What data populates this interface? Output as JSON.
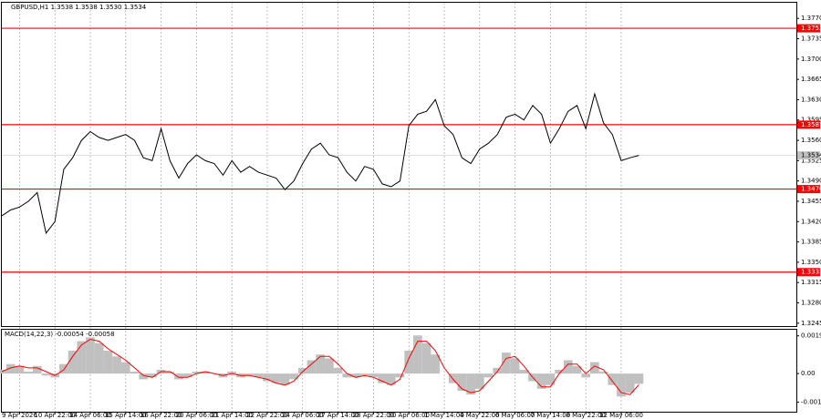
{
  "chart_data": [
    {
      "type": "line",
      "title": "GBPUSD,H1  1.3538 1.3538 1.3530 1.3534",
      "color": "#000000",
      "categories": [
        null,
        null,
        "9 Apr 2026",
        null,
        null,
        null,
        "10 Apr 22:00",
        null,
        null,
        null,
        "14 Apr 06:00",
        null,
        null,
        null,
        "15 Apr 14:00",
        null,
        null,
        null,
        "16 Apr 22:00",
        null,
        null,
        null,
        "20 Apr 06:00",
        null,
        null,
        null,
        "21 Apr 14:00",
        null,
        null,
        null,
        "22 Apr 22:00",
        null,
        null,
        null,
        "24 Apr 06:00",
        null,
        null,
        null,
        "27 Apr 14:00",
        null,
        null,
        null,
        "28 Apr 22:00",
        null,
        null,
        null,
        "30 Apr 06:00",
        null,
        null,
        null,
        "1 May 14:00",
        null,
        null,
        null,
        "4 May 22:00",
        null,
        null,
        null,
        "6 May 06:00",
        null,
        null,
        null,
        "7 May 14:00",
        null,
        null,
        null,
        "8 May 22:00",
        null,
        null,
        null,
        "12 May 06:00",
        null,
        null
      ],
      "values": [
        1.343,
        1.344,
        1.3445,
        1.3455,
        1.347,
        1.34,
        1.342,
        1.351,
        1.353,
        1.356,
        1.3575,
        1.3565,
        1.356,
        1.3565,
        1.357,
        1.356,
        1.353,
        1.3525,
        1.358,
        1.3525,
        1.3495,
        1.352,
        1.3535,
        1.3525,
        1.352,
        1.35,
        1.3525,
        1.3505,
        1.3515,
        1.3505,
        1.35,
        1.3495,
        1.3475,
        1.349,
        1.352,
        1.3545,
        1.3555,
        1.3535,
        1.353,
        1.3505,
        1.349,
        1.3515,
        1.351,
        1.3485,
        1.348,
        1.349,
        1.3585,
        1.3605,
        1.361,
        1.363,
        1.3585,
        1.357,
        1.353,
        1.352,
        1.3545,
        1.3555,
        1.357,
        1.36,
        1.3605,
        1.3595,
        1.362,
        1.3605,
        1.3555,
        1.358,
        1.361,
        1.362,
        1.358,
        1.364,
        1.359,
        1.357,
        1.3525,
        1.353,
        1.3534
      ],
      "ylim": [
        1.324,
        1.3797
      ],
      "yticks": [
        {
          "value": 1.377,
          "label": "1.3770"
        },
        {
          "value": 1.3735,
          "label": "1.3735"
        },
        {
          "value": 1.37,
          "label": "1.3700"
        },
        {
          "value": 1.3665,
          "label": "1.3665"
        },
        {
          "value": 1.363,
          "label": "1.3630"
        },
        {
          "value": 1.3595,
          "label": "1.3595"
        },
        {
          "value": 1.356,
          "label": "1.3560"
        },
        {
          "value": 1.3525,
          "label": "1.3525"
        },
        {
          "value": 1.349,
          "label": "1.3490"
        },
        {
          "value": 1.3455,
          "label": "1.3455"
        },
        {
          "value": 1.342,
          "label": "1.3420"
        },
        {
          "value": 1.3385,
          "label": "1.3385"
        },
        {
          "value": 1.335,
          "label": "1.3350"
        },
        {
          "value": 1.3315,
          "label": "1.3315"
        },
        {
          "value": 1.328,
          "label": "1.3280"
        },
        {
          "value": 1.3245,
          "label": "1.3245"
        }
      ],
      "levels": [
        {
          "value": 1.3753,
          "label": "1.3753"
        },
        {
          "value": 1.3587,
          "label": "1.3587"
        },
        {
          "value": 1.3476,
          "label": "1.3476"
        },
        {
          "value": 1.3333,
          "label": "1.3333"
        }
      ],
      "level_color": "#ff0000",
      "last_price": {
        "value": 1.3534,
        "label": "1.3534"
      },
      "grid": "x"
    },
    {
      "type": "histogram",
      "title": "MACD(14,22,3) -0.00054 -0.00058",
      "series": [
        {
          "color": "#c0c0c0",
          "values": [
            0.0002,
            0.0005,
            0.0004,
            0.0001,
            0.0004,
            -0.0001,
            -0.0002,
            0.0005,
            0.0012,
            0.0017,
            0.0019,
            0.0016,
            0.0012,
            0.0009,
            0.0006,
            0.0001,
            -0.0003,
            -0.0002,
            0.0002,
            0.0001,
            -0.0003,
            -0.0002,
            0.0001,
            0.0001,
            0,
            -0.0002,
            0.0001,
            -0.0002,
            -0.0001,
            -0.0002,
            -0.0004,
            -0.0005,
            -0.0006,
            -0.0003,
            0.0003,
            0.0007,
            0.001,
            0.0008,
            0.0003,
            -0.0002,
            -0.0002,
            -0.0001,
            -0.0002,
            -0.0005,
            -0.0006,
            -0.0002,
            0.0012,
            0.002,
            0.0016,
            0.001,
            0,
            -0.0005,
            -0.0009,
            -0.0011,
            -0.0008,
            -0.0002,
            0.0003,
            0.0011,
            0.0008,
            0.0002,
            -0.0004,
            -0.0008,
            -0.0006,
            0.0002,
            0.0007,
            0.0004,
            -0.0002,
            0.0006,
            0.0001,
            -0.0006,
            -0.0012,
            -0.001,
            -0.00054
          ]
        },
        {
          "color": "#ff0000",
          "values": [
            0.0001,
            0.0003,
            0.0004,
            0.0003,
            0.0003,
            0.0001,
            -0.0001,
            0.0002,
            0.0009,
            0.0015,
            0.0018,
            0.0017,
            0.0013,
            0.001,
            0.0007,
            0.0003,
            -0.0001,
            -0.0002,
            0.0001,
            0.0001,
            -0.0002,
            -0.0002,
            0,
            0.0001,
            0,
            -0.0001,
            0,
            -0.0001,
            -0.0001,
            -0.0002,
            -0.0003,
            -0.0005,
            -0.0006,
            -0.0004,
            0.0001,
            0.0005,
            0.0009,
            0.0009,
            0.0005,
            0,
            -0.0002,
            -0.0001,
            -0.0002,
            -0.0004,
            -0.0006,
            -0.0003,
            0.0008,
            0.0017,
            0.0017,
            0.0012,
            0.0003,
            -0.0003,
            -0.0008,
            -0.001,
            -0.0009,
            -0.0004,
            0.0001,
            0.0008,
            0.0009,
            0.0004,
            -0.0002,
            -0.0007,
            -0.0007,
            0,
            0.0005,
            0.0005,
            0,
            0.0004,
            0.0002,
            -0.0004,
            -0.001,
            -0.0011,
            -0.00058
          ]
        }
      ],
      "ylim": [
        -0.002,
        0.0023
      ],
      "yticks": [
        0.00198,
        {
          "value": 0,
          "label": "0.00"
        },
        -0.0015
      ]
    }
  ]
}
